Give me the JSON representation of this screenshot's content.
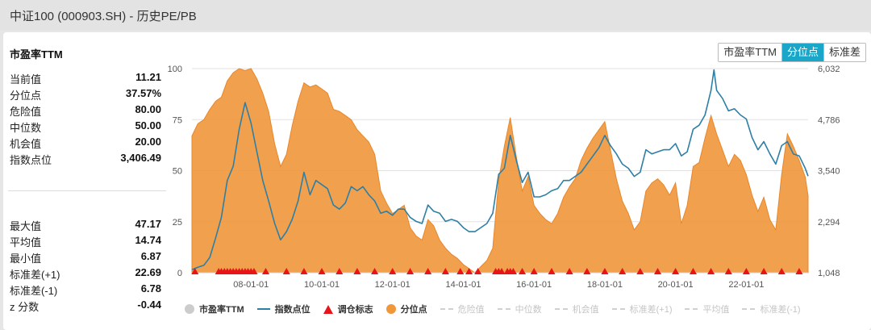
{
  "window": {
    "title": "中证100 (000903.SH) - 历史PE/PB"
  },
  "section_title": "市盈率TTM",
  "tabs": [
    {
      "label": "市盈率TTM",
      "active": false
    },
    {
      "label": "分位点",
      "active": true
    },
    {
      "label": "标准差",
      "active": false
    }
  ],
  "stats_top": [
    {
      "label": "当前值",
      "value": "11.21"
    },
    {
      "label": "分位点",
      "value": "37.57%"
    },
    {
      "label": "危险值",
      "value": "80.00"
    },
    {
      "label": "中位数",
      "value": "50.00"
    },
    {
      "label": "机会值",
      "value": "20.00"
    },
    {
      "label": "指数点位",
      "value": "3,406.49"
    }
  ],
  "stats_bottom": [
    {
      "label": "最大值",
      "value": "47.17"
    },
    {
      "label": "平均值",
      "value": "14.74"
    },
    {
      "label": "最小值",
      "value": "6.87"
    },
    {
      "label": "标准差(+1)",
      "value": "22.69"
    },
    {
      "label": "标准差(-1)",
      "value": "6.78"
    },
    {
      "label": "z 分数",
      "value": "-0.44"
    }
  ],
  "legend": [
    {
      "label": "市盈率TTM",
      "symbol": "circle",
      "color": "#cccccc",
      "faded": false
    },
    {
      "label": "指数点位",
      "symbol": "line",
      "color": "#2e7fa6",
      "faded": false
    },
    {
      "label": "调仓标志",
      "symbol": "triangle",
      "color": "#e8141a",
      "faded": false
    },
    {
      "label": "分位点",
      "symbol": "circle",
      "color": "#f0973a",
      "faded": false
    },
    {
      "label": "危险值",
      "symbol": "dash",
      "color": "#d0d0d0",
      "faded": true
    },
    {
      "label": "中位数",
      "symbol": "dash",
      "color": "#d0d0d0",
      "faded": true
    },
    {
      "label": "机会值",
      "symbol": "dash",
      "color": "#d0d0d0",
      "faded": true
    },
    {
      "label": "标准差(+1)",
      "symbol": "dash",
      "color": "#d0d0d0",
      "faded": true
    },
    {
      "label": "平均值",
      "symbol": "dash",
      "color": "#d0d0d0",
      "faded": true
    },
    {
      "label": "标准差(-1)",
      "symbol": "dash",
      "color": "#d0d0d0",
      "faded": true
    }
  ],
  "chart_data": {
    "type": "area",
    "x_start": "2006-05-01",
    "x_end": "2023-10-01",
    "x_tick_labels": [
      "08-01-01",
      "10-01-01",
      "12-01-01",
      "14-01-01",
      "16-01-01",
      "18-01-01",
      "20-01-01",
      "22-01-01"
    ],
    "x_tick_dates": [
      "2008-01-01",
      "2010-01-01",
      "2012-01-01",
      "2014-01-01",
      "2016-01-01",
      "2018-01-01",
      "2020-01-01",
      "2022-01-01"
    ],
    "y_left": {
      "ylim": [
        0,
        100
      ],
      "ticks": [
        "0",
        "25",
        "50",
        "75",
        "100"
      ]
    },
    "y_right": {
      "ylim": [
        1048,
        6032
      ],
      "ticks": [
        "1,048",
        "2,294",
        "3,540",
        "4,786",
        "6,032"
      ]
    },
    "colors": {
      "percentile": "#f0973a",
      "index": "#2e7fa6",
      "marker": "#e8141a",
      "grid": "#e2e2e2"
    },
    "series": [
      {
        "name": "分位点",
        "axis": "left",
        "points": [
          [
            "2006-05-01",
            67
          ],
          [
            "2006-07-01",
            73
          ],
          [
            "2006-09-01",
            75
          ],
          [
            "2006-11-01",
            80
          ],
          [
            "2007-01-01",
            84
          ],
          [
            "2007-03-01",
            86
          ],
          [
            "2007-05-01",
            94
          ],
          [
            "2007-07-01",
            98
          ],
          [
            "2007-09-01",
            100
          ],
          [
            "2007-11-01",
            99
          ],
          [
            "2008-01-01",
            100
          ],
          [
            "2008-03-01",
            95
          ],
          [
            "2008-05-01",
            88
          ],
          [
            "2008-07-01",
            79
          ],
          [
            "2008-09-01",
            63
          ],
          [
            "2008-11-01",
            52
          ],
          [
            "2009-01-01",
            58
          ],
          [
            "2009-03-01",
            72
          ],
          [
            "2009-05-01",
            84
          ],
          [
            "2009-07-01",
            93
          ],
          [
            "2009-09-01",
            91
          ],
          [
            "2009-11-01",
            92
          ],
          [
            "2010-01-01",
            90
          ],
          [
            "2010-03-01",
            88
          ],
          [
            "2010-05-01",
            80
          ],
          [
            "2010-07-01",
            79
          ],
          [
            "2010-09-01",
            77
          ],
          [
            "2010-11-01",
            75
          ],
          [
            "2011-01-01",
            70
          ],
          [
            "2011-03-01",
            67
          ],
          [
            "2011-05-01",
            64
          ],
          [
            "2011-07-01",
            58
          ],
          [
            "2011-09-01",
            40
          ],
          [
            "2011-11-01",
            34
          ],
          [
            "2012-01-01",
            29
          ],
          [
            "2012-03-01",
            31
          ],
          [
            "2012-05-01",
            33
          ],
          [
            "2012-07-01",
            22
          ],
          [
            "2012-09-01",
            18
          ],
          [
            "2012-11-01",
            16
          ],
          [
            "2013-01-01",
            26
          ],
          [
            "2013-03-01",
            23
          ],
          [
            "2013-05-01",
            16
          ],
          [
            "2013-07-01",
            12
          ],
          [
            "2013-09-01",
            9
          ],
          [
            "2013-11-01",
            7
          ],
          [
            "2014-01-01",
            4
          ],
          [
            "2014-03-01",
            2
          ],
          [
            "2014-05-01",
            0
          ],
          [
            "2014-07-01",
            3
          ],
          [
            "2014-09-01",
            6
          ],
          [
            "2014-11-01",
            12
          ],
          [
            "2015-01-01",
            45
          ],
          [
            "2015-03-01",
            62
          ],
          [
            "2015-05-01",
            76
          ],
          [
            "2015-07-01",
            57
          ],
          [
            "2015-09-01",
            40
          ],
          [
            "2015-11-01",
            47
          ],
          [
            "2016-01-01",
            33
          ],
          [
            "2016-03-01",
            29
          ],
          [
            "2016-05-01",
            26
          ],
          [
            "2016-07-01",
            24
          ],
          [
            "2016-09-01",
            29
          ],
          [
            "2016-11-01",
            37
          ],
          [
            "2017-01-01",
            42
          ],
          [
            "2017-03-01",
            46
          ],
          [
            "2017-05-01",
            55
          ],
          [
            "2017-07-01",
            61
          ],
          [
            "2017-09-01",
            66
          ],
          [
            "2017-11-01",
            70
          ],
          [
            "2018-01-01",
            74
          ],
          [
            "2018-03-01",
            60
          ],
          [
            "2018-05-01",
            46
          ],
          [
            "2018-07-01",
            35
          ],
          [
            "2018-09-01",
            29
          ],
          [
            "2018-11-01",
            21
          ],
          [
            "2019-01-01",
            25
          ],
          [
            "2019-03-01",
            40
          ],
          [
            "2019-05-01",
            44
          ],
          [
            "2019-07-01",
            46
          ],
          [
            "2019-09-01",
            43
          ],
          [
            "2019-11-01",
            38
          ],
          [
            "2020-01-01",
            44
          ],
          [
            "2020-03-01",
            24
          ],
          [
            "2020-05-01",
            33
          ],
          [
            "2020-07-01",
            52
          ],
          [
            "2020-09-01",
            54
          ],
          [
            "2020-11-01",
            66
          ],
          [
            "2021-01-01",
            77
          ],
          [
            "2021-03-01",
            68
          ],
          [
            "2021-05-01",
            60
          ],
          [
            "2021-07-01",
            52
          ],
          [
            "2021-09-01",
            58
          ],
          [
            "2021-11-01",
            55
          ],
          [
            "2022-01-01",
            48
          ],
          [
            "2022-03-01",
            38
          ],
          [
            "2022-05-01",
            30
          ],
          [
            "2022-07-01",
            37
          ],
          [
            "2022-09-01",
            26
          ],
          [
            "2022-11-01",
            21
          ],
          [
            "2023-01-01",
            48
          ],
          [
            "2023-03-01",
            68
          ],
          [
            "2023-05-01",
            62
          ],
          [
            "2023-07-01",
            55
          ],
          [
            "2023-09-01",
            47
          ],
          [
            "2023-10-01",
            37.57
          ]
        ]
      },
      {
        "name": "指数点位",
        "axis": "right",
        "points": [
          [
            "2006-05-01",
            1120
          ],
          [
            "2006-07-01",
            1180
          ],
          [
            "2006-09-01",
            1230
          ],
          [
            "2006-11-01",
            1420
          ],
          [
            "2007-01-01",
            1900
          ],
          [
            "2007-03-01",
            2400
          ],
          [
            "2007-05-01",
            3300
          ],
          [
            "2007-07-01",
            3650
          ],
          [
            "2007-09-01",
            4550
          ],
          [
            "2007-11-01",
            5200
          ],
          [
            "2008-01-01",
            4700
          ],
          [
            "2008-03-01",
            4000
          ],
          [
            "2008-05-01",
            3300
          ],
          [
            "2008-07-01",
            2800
          ],
          [
            "2008-09-01",
            2250
          ],
          [
            "2008-11-01",
            1850
          ],
          [
            "2009-01-01",
            2050
          ],
          [
            "2009-03-01",
            2350
          ],
          [
            "2009-05-01",
            2800
          ],
          [
            "2009-07-01",
            3500
          ],
          [
            "2009-09-01",
            2950
          ],
          [
            "2009-11-01",
            3300
          ],
          [
            "2010-01-01",
            3200
          ],
          [
            "2010-03-01",
            3100
          ],
          [
            "2010-05-01",
            2700
          ],
          [
            "2010-07-01",
            2600
          ],
          [
            "2010-09-01",
            2750
          ],
          [
            "2010-11-01",
            3150
          ],
          [
            "2011-01-01",
            3050
          ],
          [
            "2011-03-01",
            3150
          ],
          [
            "2011-05-01",
            2950
          ],
          [
            "2011-07-01",
            2800
          ],
          [
            "2011-09-01",
            2500
          ],
          [
            "2011-11-01",
            2550
          ],
          [
            "2012-01-01",
            2450
          ],
          [
            "2012-03-01",
            2600
          ],
          [
            "2012-05-01",
            2600
          ],
          [
            "2012-07-01",
            2400
          ],
          [
            "2012-09-01",
            2300
          ],
          [
            "2012-11-01",
            2250
          ],
          [
            "2013-01-01",
            2700
          ],
          [
            "2013-03-01",
            2550
          ],
          [
            "2013-05-01",
            2500
          ],
          [
            "2013-07-01",
            2300
          ],
          [
            "2013-09-01",
            2350
          ],
          [
            "2013-11-01",
            2300
          ],
          [
            "2014-01-01",
            2150
          ],
          [
            "2014-03-01",
            2050
          ],
          [
            "2014-05-01",
            2050
          ],
          [
            "2014-07-01",
            2150
          ],
          [
            "2014-09-01",
            2250
          ],
          [
            "2014-11-01",
            2500
          ],
          [
            "2015-01-01",
            3450
          ],
          [
            "2015-03-01",
            3600
          ],
          [
            "2015-05-01",
            4400
          ],
          [
            "2015-07-01",
            3800
          ],
          [
            "2015-09-01",
            3250
          ],
          [
            "2015-11-01",
            3500
          ],
          [
            "2016-01-01",
            2900
          ],
          [
            "2016-03-01",
            2900
          ],
          [
            "2016-05-01",
            2950
          ],
          [
            "2016-07-01",
            3050
          ],
          [
            "2016-09-01",
            3100
          ],
          [
            "2016-11-01",
            3300
          ],
          [
            "2017-01-01",
            3300
          ],
          [
            "2017-03-01",
            3400
          ],
          [
            "2017-05-01",
            3500
          ],
          [
            "2017-07-01",
            3700
          ],
          [
            "2017-09-01",
            3900
          ],
          [
            "2017-11-01",
            4100
          ],
          [
            "2018-01-01",
            4400
          ],
          [
            "2018-03-01",
            4150
          ],
          [
            "2018-05-01",
            3950
          ],
          [
            "2018-07-01",
            3700
          ],
          [
            "2018-09-01",
            3600
          ],
          [
            "2018-11-01",
            3400
          ],
          [
            "2019-01-01",
            3500
          ],
          [
            "2019-03-01",
            4050
          ],
          [
            "2019-05-01",
            3950
          ],
          [
            "2019-07-01",
            4000
          ],
          [
            "2019-09-01",
            4050
          ],
          [
            "2019-11-01",
            4050
          ],
          [
            "2020-01-01",
            4200
          ],
          [
            "2020-03-01",
            3900
          ],
          [
            "2020-05-01",
            4000
          ],
          [
            "2020-07-01",
            4550
          ],
          [
            "2020-09-01",
            4650
          ],
          [
            "2020-11-01",
            4900
          ],
          [
            "2021-01-01",
            5500
          ],
          [
            "2021-02-01",
            6000
          ],
          [
            "2021-03-01",
            5500
          ],
          [
            "2021-05-01",
            5300
          ],
          [
            "2021-07-01",
            5000
          ],
          [
            "2021-09-01",
            5050
          ],
          [
            "2021-11-01",
            4900
          ],
          [
            "2022-01-01",
            4800
          ],
          [
            "2022-03-01",
            4350
          ],
          [
            "2022-05-01",
            4050
          ],
          [
            "2022-07-01",
            4250
          ],
          [
            "2022-09-01",
            3950
          ],
          [
            "2022-11-01",
            3700
          ],
          [
            "2023-01-01",
            4150
          ],
          [
            "2023-03-01",
            4250
          ],
          [
            "2023-05-01",
            3950
          ],
          [
            "2023-07-01",
            3900
          ],
          [
            "2023-09-01",
            3600
          ],
          [
            "2023-10-01",
            3406.49
          ]
        ]
      }
    ],
    "markers": {
      "name": "调仓标志",
      "dates": [
        "2006-06-01",
        "2007-02-01",
        "2007-03-01",
        "2007-04-01",
        "2007-05-01",
        "2007-06-01",
        "2007-07-01",
        "2007-08-01",
        "2007-09-01",
        "2007-10-01",
        "2007-11-01",
        "2007-12-01",
        "2008-01-01",
        "2008-02-01",
        "2008-06-01",
        "2009-01-01",
        "2009-07-01",
        "2010-01-01",
        "2010-07-01",
        "2011-01-01",
        "2011-07-01",
        "2012-01-01",
        "2012-07-01",
        "2013-01-01",
        "2013-07-01",
        "2013-12-01",
        "2014-03-01",
        "2014-06-01",
        "2014-12-01",
        "2015-01-01",
        "2015-02-01",
        "2015-04-01",
        "2015-05-01",
        "2015-06-01",
        "2015-09-01",
        "2016-01-01",
        "2016-07-01",
        "2017-01-01",
        "2017-07-01",
        "2018-01-01",
        "2018-07-01",
        "2019-01-01",
        "2019-07-01",
        "2020-01-01",
        "2020-07-01",
        "2021-01-01",
        "2021-07-01",
        "2022-01-01",
        "2022-07-01",
        "2023-01-01",
        "2023-07-01"
      ]
    },
    "grid": true,
    "legend_position": "bottom"
  }
}
